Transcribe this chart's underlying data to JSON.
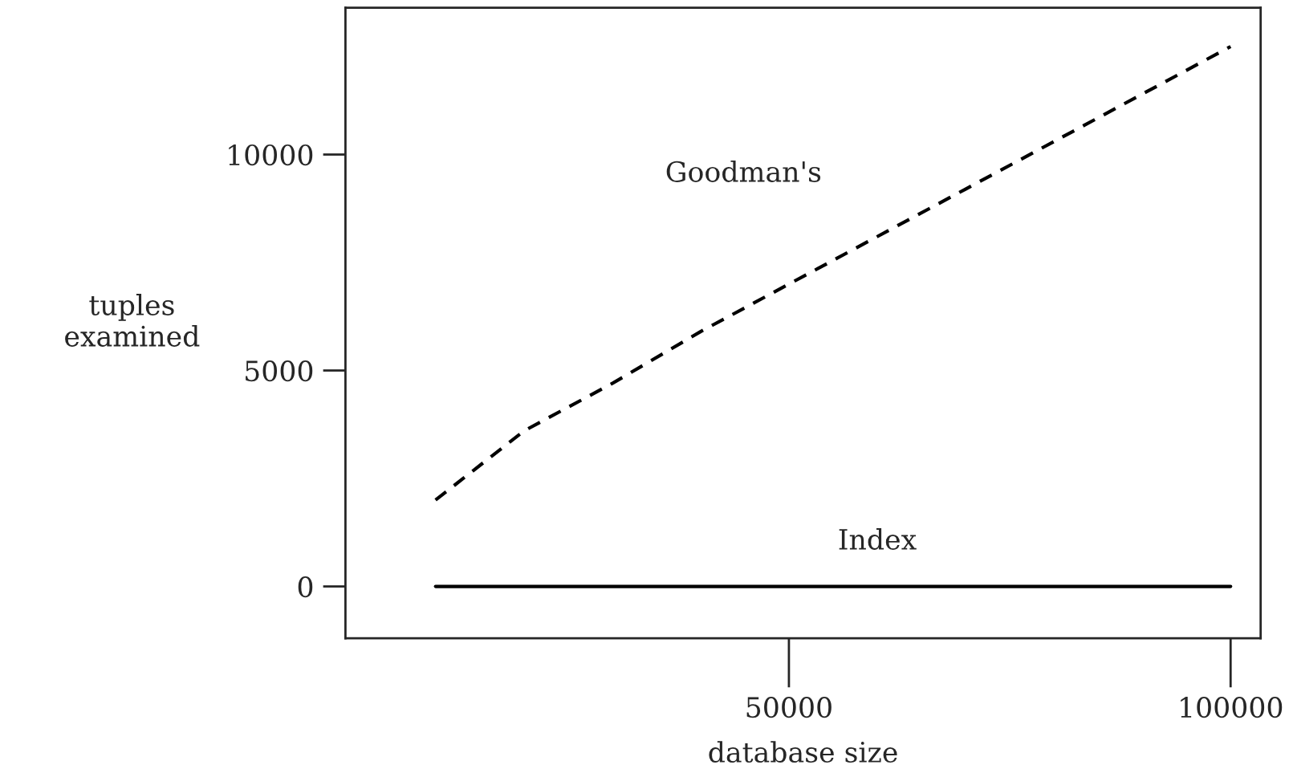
{
  "chart_data": {
    "type": "line",
    "xlabel": "database size",
    "ylabel": "tuples\nexamined",
    "x": [
      10000,
      20000,
      30000,
      40000,
      50000,
      60000,
      70000,
      80000,
      90000,
      100000
    ],
    "series": [
      {
        "name": "Goodman's",
        "color": "#000000",
        "line_style": "dashed",
        "values": [
          2000,
          3600,
          4700,
          5900,
          7000,
          8100,
          9200,
          10300,
          11400,
          12500
        ]
      },
      {
        "name": "Index",
        "color": "#000000",
        "line_style": "solid",
        "values": [
          0,
          0,
          0,
          0,
          0,
          0,
          0,
          0,
          0,
          0
        ]
      }
    ],
    "xlim": [
      -200,
      103400
    ],
    "ylim": [
      -1200,
      13400
    ],
    "xticks": [
      50000,
      100000
    ],
    "yticks": [
      0,
      5000,
      10000
    ],
    "grid": false,
    "legend": false,
    "marker": "none"
  }
}
